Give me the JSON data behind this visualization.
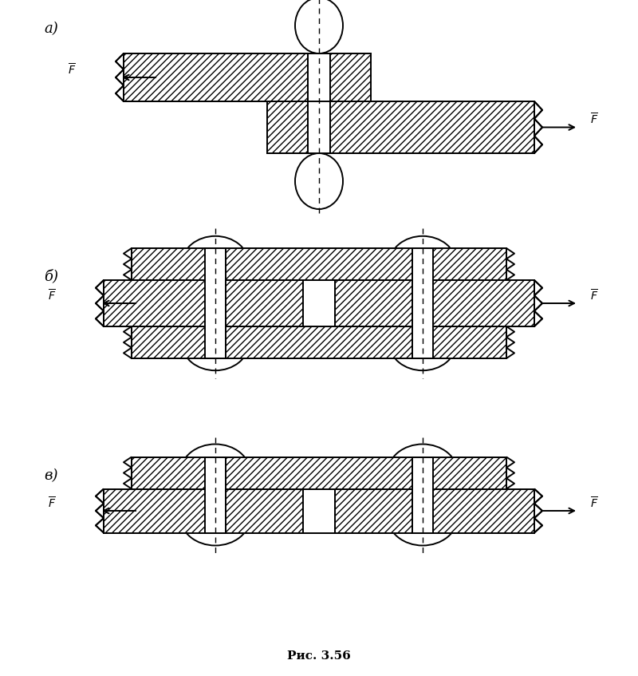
{
  "title": "Рис. 3.56",
  "labels_a": "а)",
  "labels_b": "б)",
  "labels_v": "в)",
  "bg": "#ffffff",
  "lc": "#000000",
  "hatch": "////",
  "lw": 1.4
}
